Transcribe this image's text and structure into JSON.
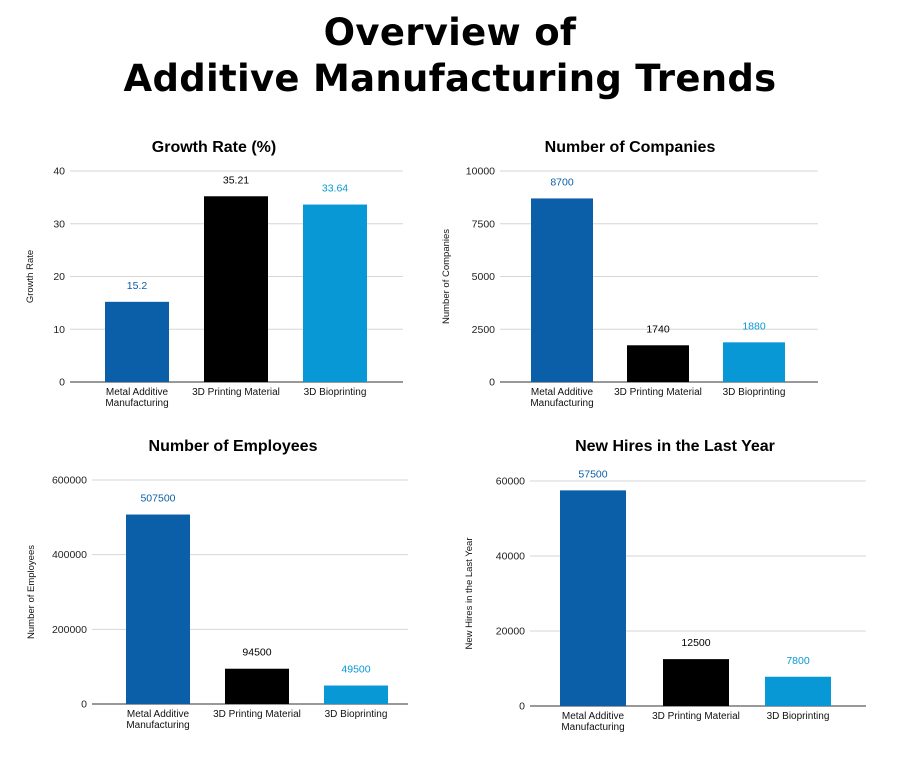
{
  "page": {
    "title_line1": "Overview of",
    "title_line2": "Additive Manufacturing Trends"
  },
  "chart_data": [
    {
      "type": "bar",
      "title": "Growth Rate (%)",
      "xlabel": "",
      "ylabel": "Growth Rate",
      "categories": [
        "Metal Additive Manufacturing",
        "3D Printing Material",
        "3D Bioprinting"
      ],
      "category_lines": [
        [
          "Metal Additive",
          "Manufacturing"
        ],
        [
          "3D Printing Material"
        ],
        [
          "3D Bioprinting"
        ]
      ],
      "values": [
        15.2,
        35.21,
        33.64
      ],
      "value_labels": [
        "15.2",
        "35.21",
        "33.64"
      ],
      "bar_colors": [
        "#0b5ea8",
        "#000000",
        "#0898d6"
      ],
      "label_colors": [
        "#0b5ea8",
        "#000000",
        "#0898d6"
      ],
      "ylim": [
        0,
        40
      ],
      "yticks": [
        0,
        10,
        20,
        30,
        40
      ],
      "ytick_labels": [
        "0",
        "10",
        "20",
        "30",
        "40"
      ],
      "grid": true
    },
    {
      "type": "bar",
      "title": "Number of Companies",
      "xlabel": "",
      "ylabel": "Number of Companies",
      "categories": [
        "Metal Additive Manufacturing",
        "3D Printing Material",
        "3D Bioprinting"
      ],
      "category_lines": [
        [
          "Metal Additive",
          "Manufacturing"
        ],
        [
          "3D Printing Material"
        ],
        [
          "3D Bioprinting"
        ]
      ],
      "values": [
        8700,
        1740,
        1880
      ],
      "value_labels": [
        "8700",
        "1740",
        "1880"
      ],
      "bar_colors": [
        "#0b5ea8",
        "#000000",
        "#0898d6"
      ],
      "label_colors": [
        "#0b5ea8",
        "#000000",
        "#0898d6"
      ],
      "ylim": [
        0,
        10000
      ],
      "yticks": [
        0,
        2500,
        5000,
        7500,
        10000
      ],
      "ytick_labels": [
        "0",
        "2500",
        "5000",
        "7500",
        "10000"
      ],
      "grid": true
    },
    {
      "type": "bar",
      "title": "Number of Employees",
      "xlabel": "",
      "ylabel": "Number of Employees",
      "categories": [
        "Metal Additive Manufacturing",
        "3D Printing Material",
        "3D Bioprinting"
      ],
      "category_lines": [
        [
          "Metal Additive",
          "Manufacturing"
        ],
        [
          "3D Printing Material"
        ],
        [
          "3D Bioprinting"
        ]
      ],
      "values": [
        507500,
        94500,
        49500
      ],
      "value_labels": [
        "507500",
        "94500",
        "49500"
      ],
      "bar_colors": [
        "#0b5ea8",
        "#000000",
        "#0898d6"
      ],
      "label_colors": [
        "#0b5ea8",
        "#000000",
        "#0898d6"
      ],
      "ylim": [
        0,
        600000
      ],
      "yticks": [
        0,
        200000,
        400000,
        600000
      ],
      "ytick_labels": [
        "0",
        "200000",
        "400000",
        "600000"
      ],
      "grid": true
    },
    {
      "type": "bar",
      "title": "New Hires in the Last Year",
      "xlabel": "",
      "ylabel": "New Hires in the Last Year",
      "categories": [
        "Metal Additive Manufacturing",
        "3D Printing Material",
        "3D Bioprinting"
      ],
      "category_lines": [
        [
          "Metal Additive",
          "Manufacturing"
        ],
        [
          "3D Printing Material"
        ],
        [
          "3D Bioprinting"
        ]
      ],
      "values": [
        57500,
        12500,
        7800
      ],
      "value_labels": [
        "57500",
        "12500",
        "7800"
      ],
      "bar_colors": [
        "#0b5ea8",
        "#000000",
        "#0898d6"
      ],
      "label_colors": [
        "#0b5ea8",
        "#000000",
        "#0898d6"
      ],
      "ylim": [
        0,
        60000
      ],
      "yticks": [
        0,
        20000,
        40000,
        60000
      ],
      "ytick_labels": [
        "0",
        "20000",
        "40000",
        "60000"
      ],
      "grid": true
    }
  ]
}
